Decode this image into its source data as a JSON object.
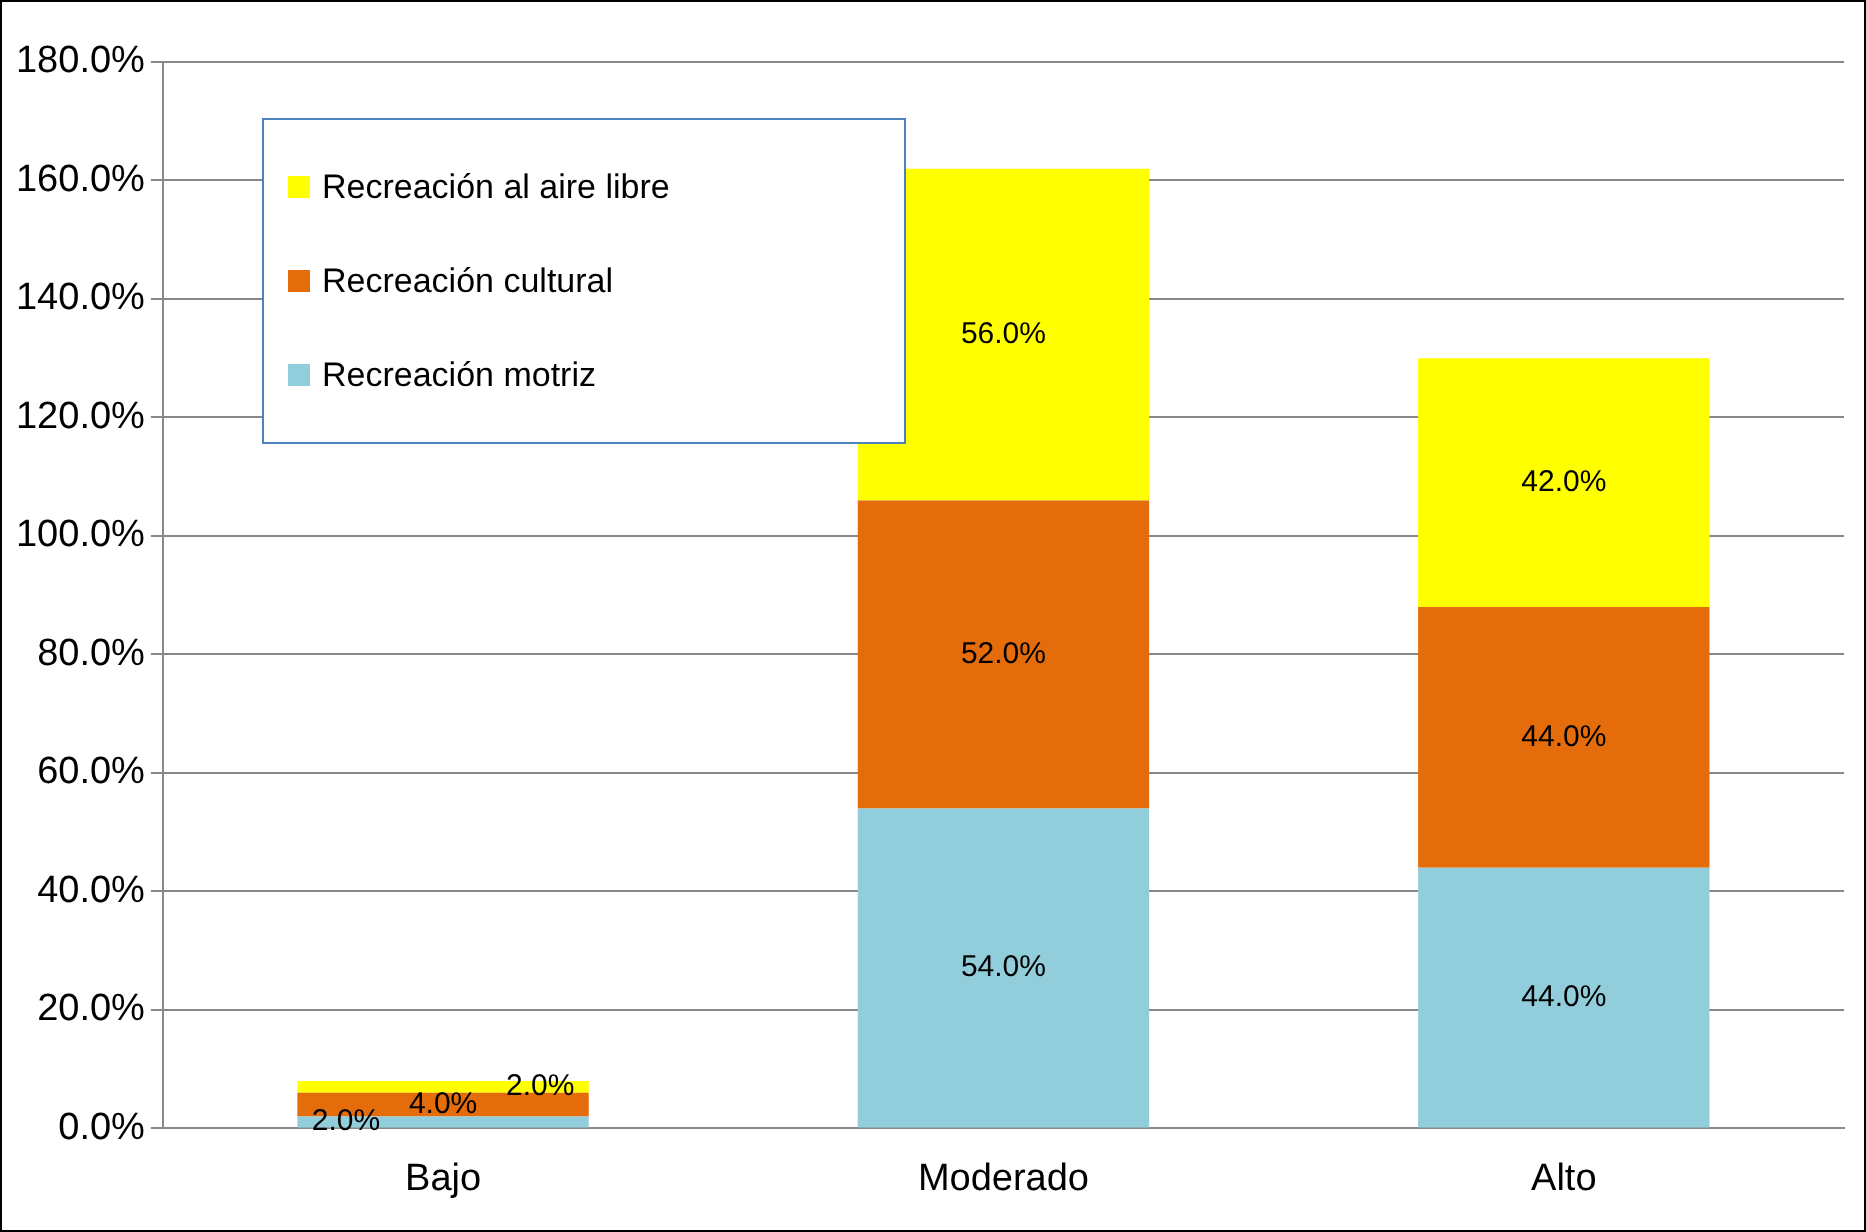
{
  "chart_data": {
    "type": "bar",
    "stacked": true,
    "categories": [
      "Bajo",
      "Moderado",
      "Alto"
    ],
    "series": [
      {
        "name": "Recreación motriz",
        "color": "#92cddc",
        "values": [
          2.0,
          54.0,
          44.0
        ],
        "value_labels": [
          "2.0%",
          "54.0%",
          "44.0%"
        ]
      },
      {
        "name": "Recreación cultural",
        "color": "#e46c0a",
        "values": [
          4.0,
          52.0,
          44.0
        ],
        "value_labels": [
          "4.0%",
          "52.0%",
          "44.0%"
        ]
      },
      {
        "name": "Recreación al aire libre",
        "color": "#ffff00",
        "values": [
          2.0,
          56.0,
          42.0
        ],
        "value_labels": [
          "2.0%",
          "56.0%",
          "42.0%"
        ]
      }
    ],
    "ylim": [
      0,
      180
    ],
    "yticks": [
      {
        "value": 0,
        "label": "0.0%"
      },
      {
        "value": 20,
        "label": "20.0%"
      },
      {
        "value": 40,
        "label": "40.0%"
      },
      {
        "value": 60,
        "label": "60.0%"
      },
      {
        "value": 80,
        "label": "80.0%"
      },
      {
        "value": 100,
        "label": "100.0%"
      },
      {
        "value": 120,
        "label": "120.0%"
      },
      {
        "value": 140,
        "label": "140.0%"
      },
      {
        "value": 160,
        "label": "160.0%"
      },
      {
        "value": 180,
        "label": "180.0%"
      }
    ],
    "grid": "y",
    "legend": "top left"
  }
}
